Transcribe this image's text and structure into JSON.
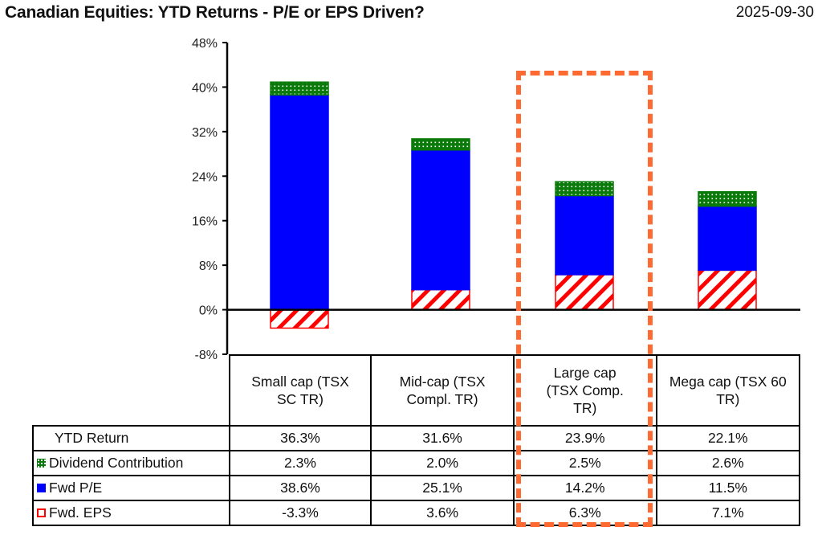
{
  "title": "Canadian Equities: YTD Returns - P/E or EPS Driven?",
  "date": "2025-09-30",
  "colors": {
    "dividend": "#0a7a0a",
    "pe": "#0000ff",
    "eps": "#ff0000",
    "highlight": "#ff6a33"
  },
  "chart_data": {
    "type": "bar",
    "stacked": true,
    "title": "Canadian Equities: YTD Returns - P/E or EPS Driven?",
    "categories": [
      "Small cap (TSX SC TR)",
      "Mid-cap (TSX Compl. TR)",
      "Large cap (TSX Comp. TR)",
      "Mega cap (TSX 60 TR)"
    ],
    "series": [
      {
        "name": "Fwd. EPS",
        "values": [
          -3.3,
          3.6,
          6.3,
          7.1
        ],
        "pattern": "diagonal-hatch"
      },
      {
        "name": "Fwd P/E",
        "values": [
          38.6,
          25.1,
          14.2,
          11.5
        ],
        "pattern": "solid"
      },
      {
        "name": "Dividend Contribution",
        "values": [
          2.3,
          2.0,
          2.5,
          2.6
        ],
        "pattern": "dots"
      }
    ],
    "ytd_return": [
      36.3,
      31.6,
      23.9,
      22.1
    ],
    "ylim": [
      -8,
      48
    ],
    "yticks": [
      "48%",
      "40%",
      "32%",
      "24%",
      "16%",
      "8%",
      "0%",
      "-8%"
    ],
    "ytick_values": [
      48,
      40,
      32,
      24,
      16,
      8,
      0,
      -8
    ],
    "highlighted_category": "Large cap (TSX Comp. TR)",
    "xlabel": "",
    "ylabel": ""
  },
  "table": {
    "headers": [
      "Small cap (TSX SC TR)",
      "Mid-cap (TSX Compl. TR)",
      "Large cap (TSX Comp. TR)",
      "Mega cap (TSX 60 TR)"
    ],
    "rows": [
      {
        "label": "YTD Return",
        "values": [
          "36.3%",
          "31.6%",
          "23.9%",
          "22.1%"
        ]
      },
      {
        "label": "Dividend Contribution",
        "values": [
          "2.3%",
          "2.0%",
          "2.5%",
          "2.6%"
        ]
      },
      {
        "label": "Fwd P/E",
        "values": [
          "38.6%",
          "25.1%",
          "14.2%",
          "11.5%"
        ]
      },
      {
        "label": "Fwd. EPS",
        "values": [
          "-3.3%",
          "3.6%",
          "6.3%",
          "7.1%"
        ]
      }
    ]
  }
}
